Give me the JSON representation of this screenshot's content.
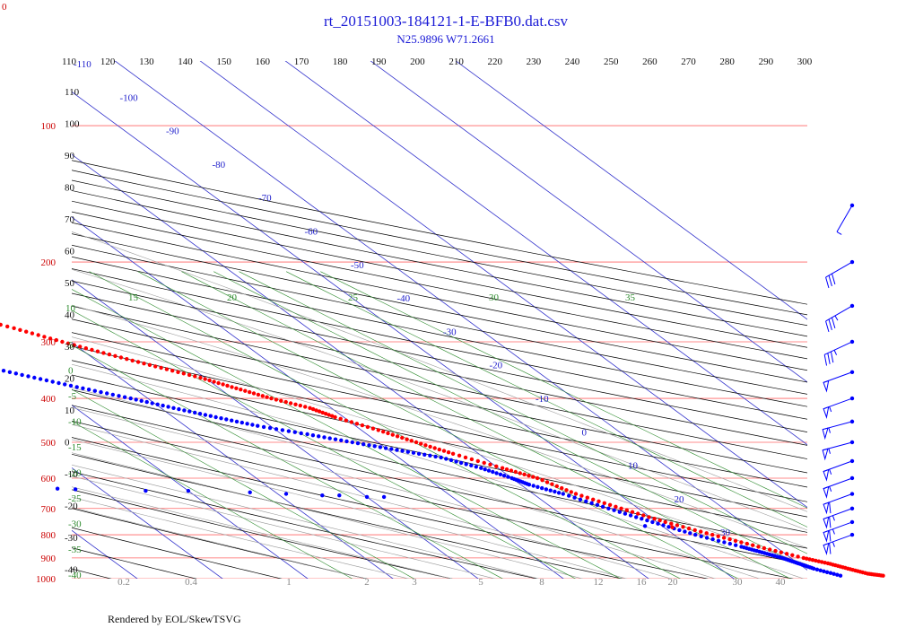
{
  "header": {
    "title": "rt_20151003-184121-1-E-BFB0.dat.csv",
    "subtitle": "N25.9896 W71.2661",
    "corner_label": "0"
  },
  "footer": {
    "text": "Rendered by EOL/SkewTSVG"
  },
  "colors": {
    "temperature": "#ff0000",
    "dewpoint": "#0000ff",
    "isobar": "#ff6666",
    "isotherm": "#3333cc",
    "dry_adiabat": "#000000",
    "mixing_ratio": "#2e8b2e",
    "moist_adiabat": "#999999"
  },
  "chart_data": {
    "type": "skew-t",
    "title": "rt_20151003-184121-1-E-BFB0.dat.csv",
    "subtitle": "N25.9896 W71.2661",
    "pressure_levels_hpa": [
      100,
      200,
      300,
      400,
      500,
      600,
      700,
      800,
      900,
      1000
    ],
    "top_axis_potential_temperature_k": [
      110,
      120,
      130,
      140,
      150,
      160,
      170,
      180,
      190,
      200,
      210,
      220,
      230,
      240,
      250,
      260,
      270,
      280,
      290,
      300
    ],
    "left_dry_adiabat_labels": [
      "110",
      "100",
      "90",
      "80",
      "70",
      "60",
      "50",
      "40",
      "30",
      "20",
      "10",
      "0",
      "-10",
      "-20",
      "-30",
      "-40"
    ],
    "isotherm_labels": [
      "-110",
      "-100",
      "-90",
      "-80",
      "-70",
      "-60",
      "-50",
      "-40",
      "-30",
      "-20",
      "-10",
      "0",
      "10",
      "20",
      "30"
    ],
    "mixing_ratio_top_labels": [
      "10",
      "15",
      "20",
      "25",
      "30",
      "35"
    ],
    "mixing_ratio_left_labels": [
      "5",
      "0",
      "-5",
      "-10",
      "-15",
      "-20",
      "-25",
      "-30",
      "-35",
      "-40"
    ],
    "bottom_axis_labels": [
      "0.2",
      "0.4",
      "1",
      "2",
      "3",
      "5",
      "8",
      "12",
      "16",
      "20",
      "30",
      "40"
    ],
    "temperature_profile": [
      {
        "p": 985,
        "t": 28.0
      },
      {
        "p": 975,
        "t": 26.5
      },
      {
        "p": 950,
        "t": 25.0
      },
      {
        "p": 925,
        "t": 23.5
      },
      {
        "p": 900,
        "t": 21.5
      },
      {
        "p": 850,
        "t": 18.0
      },
      {
        "p": 800,
        "t": 14.5
      },
      {
        "p": 750,
        "t": 11.0
      },
      {
        "p": 700,
        "t": 8.0
      },
      {
        "p": 650,
        "t": 5.0
      },
      {
        "p": 600,
        "t": 3.0
      },
      {
        "p": 570,
        "t": 0.5
      },
      {
        "p": 530,
        "t": -3.0
      },
      {
        "p": 500,
        "t": -5.5
      },
      {
        "p": 470,
        "t": -8.0
      },
      {
        "p": 440,
        "t": -11.0
      },
      {
        "p": 420,
        "t": -12.5
      },
      {
        "p": 400,
        "t": -15.5
      },
      {
        "p": 380,
        "t": -18.0
      },
      {
        "p": 360,
        "t": -20.5
      },
      {
        "p": 340,
        "t": -24.0
      },
      {
        "p": 320,
        "t": -27.5
      },
      {
        "p": 300,
        "t": -31.0
      },
      {
        "p": 280,
        "t": -34.5
      },
      {
        "p": 260,
        "t": -38.5
      },
      {
        "p": 240,
        "t": -42.5
      },
      {
        "p": 220,
        "t": -47.0
      },
      {
        "p": 200,
        "t": -51.5
      },
      {
        "p": 190,
        "t": -53.5
      },
      {
        "p": 180,
        "t": -56.0
      },
      {
        "p": 170,
        "t": -58.5
      },
      {
        "p": 160,
        "t": -61.5
      },
      {
        "p": 150,
        "t": -64.5
      },
      {
        "p": 140,
        "t": -67.5
      },
      {
        "p": 130,
        "t": -70.5
      },
      {
        "p": 120,
        "t": -73.5
      },
      {
        "p": 112,
        "t": -76.0
      },
      {
        "p": 105,
        "t": -78.5
      },
      {
        "p": 100,
        "t": -80.0
      },
      {
        "p": 95,
        "t": -79.0
      },
      {
        "p": 90,
        "t": -76.0
      },
      {
        "p": 85,
        "t": -72.0
      },
      {
        "p": 80,
        "t": -67.0
      },
      {
        "p": 76,
        "t": -63.0
      },
      {
        "p": 73,
        "t": -60.0
      }
    ],
    "dewpoint_profile": [
      {
        "p": 985,
        "t": 23.0
      },
      {
        "p": 950,
        "t": 21.0
      },
      {
        "p": 925,
        "t": 20.0
      },
      {
        "p": 900,
        "t": 19.0
      },
      {
        "p": 875,
        "t": 17.5
      },
      {
        "p": 850,
        "t": 16.0
      },
      {
        "p": 800,
        "t": 12.5
      },
      {
        "p": 750,
        "t": 9.5
      },
      {
        "p": 700,
        "t": 6.5
      },
      {
        "p": 650,
        "t": 3.5
      },
      {
        "p": 620,
        "t": 1.0
      },
      {
        "p": 600,
        "t": 0.0
      },
      {
        "p": 570,
        "t": -2.0
      },
      {
        "p": 540,
        "t": -5.0
      },
      {
        "p": 520,
        "t": -9.0
      },
      {
        "p": 500,
        "t": -13.0
      },
      {
        "p": 480,
        "t": -17.0
      },
      {
        "p": 460,
        "t": -21.5
      },
      {
        "p": 440,
        "t": -25.0
      },
      {
        "p": 420,
        "t": -28.5
      },
      {
        "p": 400,
        "t": -32.0
      },
      {
        "p": 380,
        "t": -36.0
      },
      {
        "p": 360,
        "t": -40.0
      },
      {
        "p": 340,
        "t": -44.0
      },
      {
        "p": 320,
        "t": -48.5
      },
      {
        "p": 300,
        "t": -53.0
      },
      {
        "p": 280,
        "t": -58.0
      },
      {
        "p": 260,
        "t": -63.5
      },
      {
        "p": 240,
        "t": -69.0
      },
      {
        "p": 220,
        "t": -75.5
      },
      {
        "p": 205,
        "t": -81.0
      },
      {
        "p": 195,
        "t": -85.0
      }
    ],
    "stray_temperature_points": [
      {
        "p": 770,
        "t": 11.0
      }
    ],
    "stray_dewpoint_points": [
      {
        "p": 765,
        "t": 8.0
      },
      {
        "p": 660,
        "t": -18.0
      },
      {
        "p": 660,
        "t": -20.0
      },
      {
        "p": 655,
        "t": -23.0
      },
      {
        "p": 655,
        "t": -25.0
      },
      {
        "p": 650,
        "t": -29.0
      },
      {
        "p": 645,
        "t": -33.0
      },
      {
        "p": 640,
        "t": -40.0
      },
      {
        "p": 640,
        "t": -45.0
      },
      {
        "p": 635,
        "t": -53.0
      },
      {
        "p": 633,
        "t": -55.0
      }
    ],
    "wind_barbs": [
      {
        "p": 150,
        "dir": 210,
        "speed": 5
      },
      {
        "p": 200,
        "dir": 240,
        "speed": 30
      },
      {
        "p": 250,
        "dir": 240,
        "speed": 35
      },
      {
        "p": 300,
        "dir": 245,
        "speed": 35
      },
      {
        "p": 350,
        "dir": 250,
        "speed": 50
      },
      {
        "p": 400,
        "dir": 250,
        "speed": 55
      },
      {
        "p": 450,
        "dir": 255,
        "speed": 55
      },
      {
        "p": 500,
        "dir": 255,
        "speed": 55
      },
      {
        "p": 550,
        "dir": 250,
        "speed": 55
      },
      {
        "p": 600,
        "dir": 250,
        "speed": 55
      },
      {
        "p": 650,
        "dir": 250,
        "speed": 60
      },
      {
        "p": 700,
        "dir": 250,
        "speed": 65
      },
      {
        "p": 750,
        "dir": 250,
        "speed": 65
      },
      {
        "p": 800,
        "dir": 250,
        "speed": 65
      }
    ]
  }
}
